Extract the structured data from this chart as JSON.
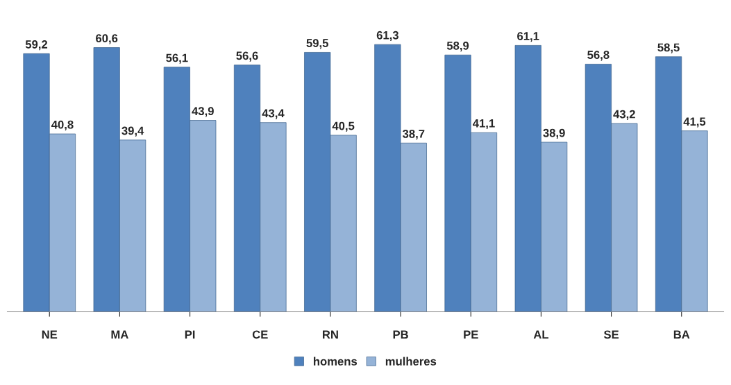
{
  "chart_data": {
    "type": "bar",
    "categories": [
      "NE",
      "MA",
      "PI",
      "CE",
      "RN",
      "PB",
      "PE",
      "AL",
      "SE",
      "BA"
    ],
    "series": [
      {
        "name": "homens",
        "color": "#4f81bd",
        "values": [
          59.2,
          60.6,
          56.1,
          56.6,
          59.5,
          61.3,
          58.9,
          61.1,
          56.8,
          58.5
        ],
        "value_labels": [
          "59,2",
          "60,6",
          "56,1",
          "56,6",
          "59,5",
          "61,3",
          "58,9",
          "61,1",
          "56,8",
          "58,5"
        ]
      },
      {
        "name": "mulheres",
        "color": "#95b3d7",
        "values": [
          40.8,
          39.4,
          43.9,
          43.4,
          40.5,
          38.7,
          41.1,
          38.9,
          43.2,
          41.5
        ],
        "value_labels": [
          "40,8",
          "39,4",
          "43,9",
          "43,4",
          "40,5",
          "38,7",
          "41,1",
          "38,9",
          "43,2",
          "41,5"
        ]
      }
    ],
    "legend": "bottom",
    "grid": false
  }
}
